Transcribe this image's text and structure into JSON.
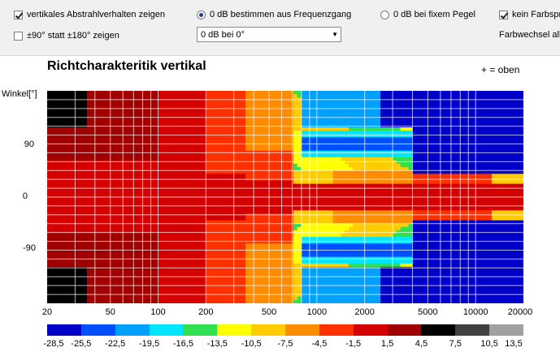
{
  "toolbar": {
    "vertical_checkbox": {
      "label": "vertikales Abstrahlverhalten zeigen",
      "checked": true
    },
    "range_checkbox": {
      "label": "±90° statt ±180° zeigen",
      "checked": false
    },
    "radio_freq": {
      "label": "0 dB bestimmen aus Frequenzgang",
      "checked": true
    },
    "radio_fixed": {
      "label": "0 dB bei fixem Pegel",
      "checked": false
    },
    "nocolor_checkbox": {
      "label": "kein Farbspr",
      "checked": true
    },
    "farbwechsel_label": "Farbwechsel  all",
    "reference_select": {
      "value": "0 dB bei 0°"
    }
  },
  "chart_data": {
    "type": "heatmap",
    "title": "Richtcharakteritik vertikal",
    "orientation_note": "+ = oben",
    "ylabel": "Winkel[°]",
    "xscale": "log",
    "xlim": [
      20,
      20000
    ],
    "ylim": [
      -180,
      180
    ],
    "x_ticks": [
      "20",
      "50",
      "100",
      "200",
      "500",
      "1000",
      "2000",
      "5000",
      "10000",
      "20000"
    ],
    "x_tick_values": [
      20,
      50,
      100,
      200,
      500,
      1000,
      2000,
      5000,
      10000,
      20000
    ],
    "y_ticks": [
      "90",
      "0",
      "-90"
    ],
    "y_tick_values": [
      90,
      0,
      -90
    ],
    "grid": true,
    "colorscale": {
      "labels": [
        "-28,5",
        "-25,5",
        "-22,5",
        "-19,5",
        "-16,5",
        "-13,5",
        "-10,5",
        "-7,5",
        "-4,5",
        "-1,5",
        "1,5",
        "4,5",
        "7,5",
        "10,5",
        "13,5"
      ],
      "colors": [
        "#0000c8",
        "#0050ff",
        "#00a0ff",
        "#00e6ff",
        "#30e050",
        "#ffff00",
        "#ffcc00",
        "#ff8c00",
        "#ff3000",
        "#d40000",
        "#a00000",
        "#000000",
        "#404040",
        "#a0a0a0",
        "#e0e0e0"
      ]
    }
  }
}
